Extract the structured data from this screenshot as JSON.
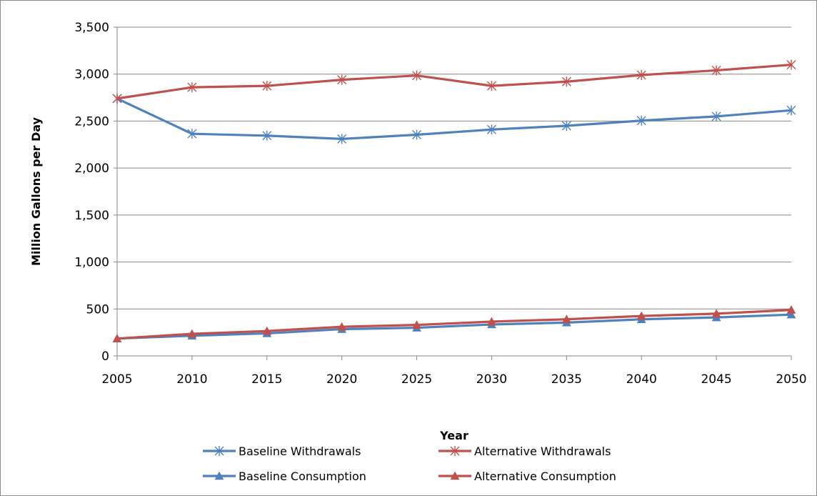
{
  "chart_data": {
    "type": "line",
    "title": "",
    "xlabel": "Year",
    "ylabel": "Million Gallons per Day",
    "x": [
      2005,
      2010,
      2015,
      2020,
      2025,
      2030,
      2035,
      2040,
      2045,
      2050
    ],
    "x_tick_labels": [
      "2005",
      "2010",
      "2015",
      "2020",
      "2025",
      "2030",
      "2035",
      "2040",
      "2045",
      "2050"
    ],
    "ylim": [
      0,
      3500
    ],
    "y_ticks": [
      0,
      500,
      1000,
      1500,
      2000,
      2500,
      3000,
      3500
    ],
    "y_tick_labels": [
      "0",
      "500",
      "1,000",
      "1,500",
      "2,000",
      "2,500",
      "3,000",
      "3,500"
    ],
    "grid": "horizontal",
    "legend_position": "bottom",
    "series": [
      {
        "name": "Baseline Withdrawals",
        "color": "#4f81bd",
        "marker": "star",
        "values": [
          2740,
          2365,
          2345,
          2310,
          2355,
          2410,
          2450,
          2505,
          2550,
          2615
        ]
      },
      {
        "name": "Alternative Withdrawals",
        "color": "#c0504d",
        "marker": "star",
        "values": [
          2740,
          2860,
          2875,
          2940,
          2985,
          2875,
          2920,
          2990,
          3040,
          3100
        ]
      },
      {
        "name": "Baseline Consumption",
        "color": "#4f81bd",
        "marker": "triangle",
        "values": [
          185,
          215,
          240,
          285,
          300,
          335,
          355,
          390,
          410,
          440
        ]
      },
      {
        "name": "Alternative Consumption",
        "color": "#c0504d",
        "marker": "triangle",
        "values": [
          185,
          235,
          265,
          310,
          330,
          365,
          390,
          425,
          450,
          490
        ]
      }
    ],
    "axis_color": "#868686",
    "grid_color": "#868686"
  }
}
